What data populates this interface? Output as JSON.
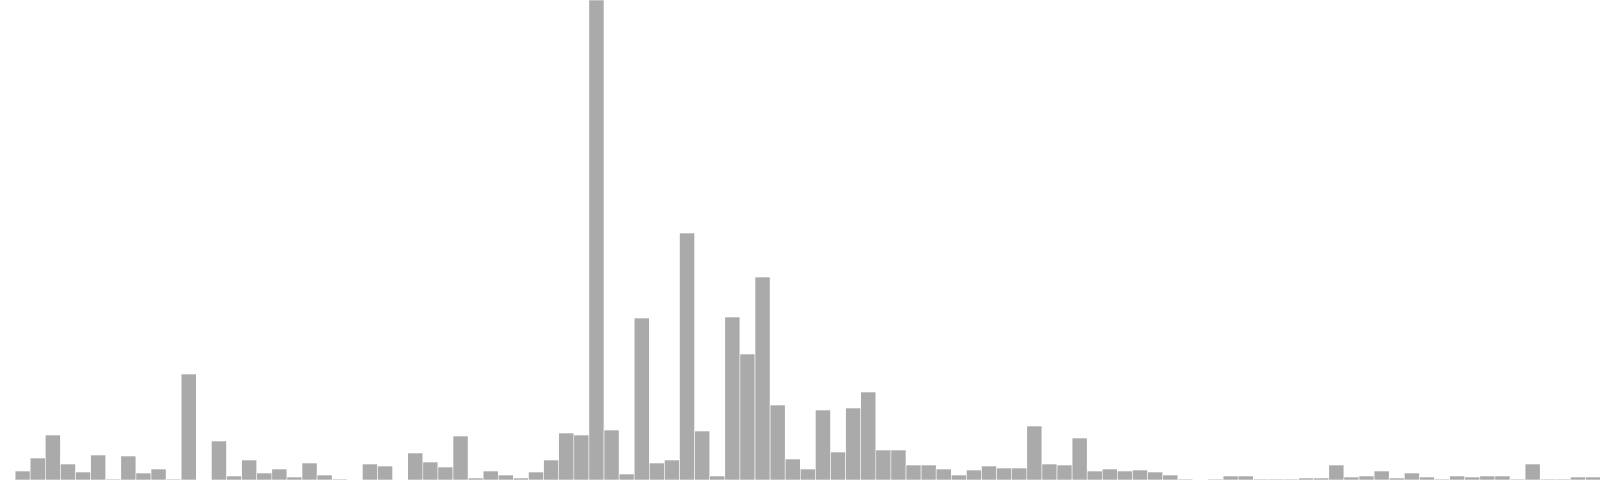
{
  "chart_data": {
    "type": "bar",
    "title": "",
    "xlabel": "",
    "ylabel": "",
    "ylim": [
      0,
      480
    ],
    "grid": false,
    "legend": "none",
    "bar_color": "#aaaaaa",
    "values": [
      0,
      9,
      22,
      45,
      16,
      8,
      25,
      1,
      24,
      7,
      11,
      1,
      106,
      0,
      39,
      4,
      20,
      7,
      11,
      3,
      17,
      5,
      1,
      0,
      16,
      14,
      0,
      27,
      18,
      13,
      44,
      2,
      9,
      5,
      2,
      8,
      20,
      47,
      45,
      480,
      50,
      6,
      162,
      17,
      20,
      247,
      49,
      4,
      163,
      126,
      203,
      75,
      21,
      11,
      70,
      28,
      72,
      88,
      30,
      30,
      15,
      15,
      11,
      5,
      10,
      14,
      12,
      12,
      54,
      16,
      15,
      42,
      9,
      11,
      9,
      10,
      8,
      5,
      1,
      0,
      1,
      4,
      4,
      1,
      1,
      1,
      2,
      2,
      15,
      3,
      4,
      9,
      2,
      7,
      3,
      1,
      4,
      3,
      4,
      4,
      1,
      16,
      1,
      1,
      3,
      3
    ]
  }
}
